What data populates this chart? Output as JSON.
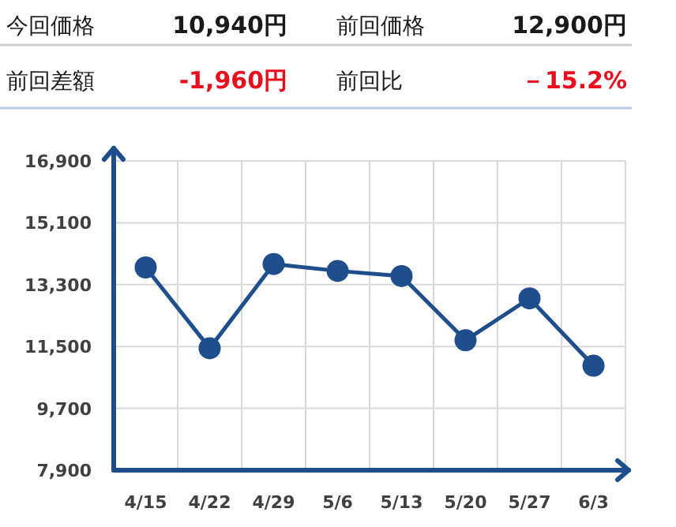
{
  "chart_data": [
    {
      "type": "other",
      "annotations": [
        "今回価格",
        "10,940円",
        "前回価格",
        "12,900円",
        "前回差額",
        "-1,960円",
        "前回比",
        "－15.2%"
      ]
    },
    {
      "type": "line",
      "categories": [
        "4/15",
        "4/22",
        "4/29",
        "5/6",
        "5/13",
        "5/20",
        "5/27",
        "6/3"
      ],
      "series": [
        {
          "color": "#1f4e8c",
          "values": [
            13800,
            11450,
            13900,
            13700,
            13550,
            11680,
            12900,
            10940
          ]
        }
      ],
      "ylim": [
        7900,
        16900
      ],
      "yticks": [
        {
          "value": 7900,
          "label": "7,900"
        },
        {
          "value": 9700,
          "label": "9,700"
        },
        {
          "value": 11500,
          "label": "11,500"
        },
        {
          "value": 13300,
          "label": "13,300"
        },
        {
          "value": 15100,
          "label": "15,100"
        },
        {
          "value": 16900,
          "label": "16,900"
        }
      ],
      "grid": true,
      "marker": "circle",
      "line_style": "solid"
    }
  ]
}
